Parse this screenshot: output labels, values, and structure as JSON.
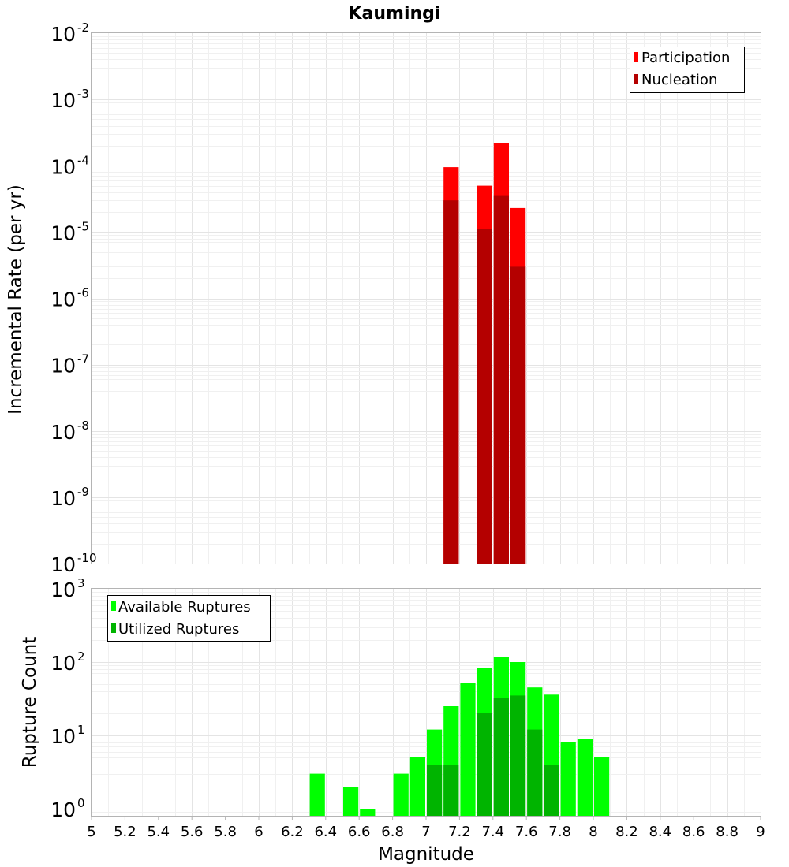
{
  "chart_data": [
    {
      "type": "bar",
      "title": "Kaumingi",
      "xlabel": "",
      "ylabel": "Incremental Rate (per yr)",
      "yscale": "log",
      "xlim": [
        5,
        9
      ],
      "ylim": [
        1e-10,
        0.01
      ],
      "y_ticks": [
        {
          "base": "10",
          "exp": "-2",
          "value": 0.01
        },
        {
          "base": "10",
          "exp": "-3",
          "value": 0.001
        },
        {
          "base": "10",
          "exp": "-4",
          "value": 0.0001
        },
        {
          "base": "10",
          "exp": "-5",
          "value": 1e-05
        },
        {
          "base": "10",
          "exp": "-6",
          "value": 1e-06
        },
        {
          "base": "10",
          "exp": "-7",
          "value": 1e-07
        },
        {
          "base": "10",
          "exp": "-8",
          "value": 1e-08
        },
        {
          "base": "10",
          "exp": "-9",
          "value": 1e-09
        },
        {
          "base": "10",
          "exp": "-10",
          "value": 1e-10
        }
      ],
      "bar_width": 0.1,
      "legend_position": "top-right",
      "series": [
        {
          "name": "Participation",
          "color": "#ff0000",
          "x": [
            7.15,
            7.35,
            7.45,
            7.55
          ],
          "values": [
            9.5e-05,
            5e-05,
            0.00022,
            2.3e-05
          ]
        },
        {
          "name": "Nucleation",
          "color": "#b40000",
          "x": [
            7.15,
            7.35,
            7.45,
            7.55
          ],
          "values": [
            3e-05,
            1.1e-05,
            3.5e-05,
            3e-06
          ]
        }
      ]
    },
    {
      "type": "bar",
      "title": "",
      "xlabel": "Magnitude",
      "ylabel": "Rupture Count",
      "yscale": "log",
      "xlim": [
        5,
        9
      ],
      "ylim": [
        0.8,
        1000
      ],
      "y_ticks": [
        {
          "base": "10",
          "exp": "3",
          "value": 1000
        },
        {
          "base": "10",
          "exp": "2",
          "value": 100
        },
        {
          "base": "10",
          "exp": "1",
          "value": 10
        },
        {
          "base": "10",
          "exp": "0",
          "value": 1
        }
      ],
      "x_ticks": [
        "5",
        "5.2",
        "5.4",
        "5.6",
        "5.8",
        "6",
        "6.2",
        "6.4",
        "6.6",
        "6.8",
        "7",
        "7.2",
        "7.4",
        "7.6",
        "7.8",
        "8",
        "8.2",
        "8.4",
        "8.6",
        "8.8",
        "9"
      ],
      "bar_width": 0.1,
      "legend_position": "top-left",
      "series": [
        {
          "name": "Available Ruptures",
          "color": "#00ff00",
          "x": [
            6.35,
            6.55,
            6.65,
            6.85,
            6.95,
            7.05,
            7.15,
            7.25,
            7.35,
            7.45,
            7.55,
            7.65,
            7.75,
            7.85,
            7.95,
            8.05
          ],
          "values": [
            3,
            2,
            1,
            3,
            5,
            12,
            25,
            52,
            82,
            118,
            100,
            45,
            36,
            8,
            9,
            5
          ]
        },
        {
          "name": "Utilized Ruptures",
          "color": "#00b400",
          "x": [
            7.05,
            7.15,
            7.35,
            7.45,
            7.55,
            7.65,
            7.75
          ],
          "values": [
            4,
            4,
            20,
            32,
            35,
            12,
            4
          ]
        }
      ]
    }
  ]
}
